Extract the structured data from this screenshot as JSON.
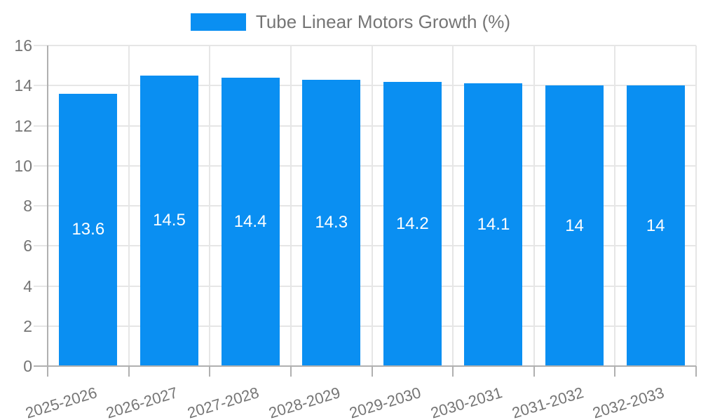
{
  "colors": {
    "bar": "#0a8ff2",
    "grid": "#e6e6e6",
    "axis": "#b0b0b0",
    "text": "#757575",
    "bar_label": "#ffffff",
    "background": "#ffffff"
  },
  "legend": {
    "label": "Tube Linear Motors Growth (%)"
  },
  "chart_data": {
    "type": "bar",
    "title": "Tube Linear Motors Growth (%)",
    "categories": [
      "2025-2026",
      "2026-2027",
      "2027-2028",
      "2028-2029",
      "2029-2030",
      "2030-2031",
      "2031-2032",
      "2032-2033"
    ],
    "values": [
      13.6,
      14.5,
      14.4,
      14.3,
      14.2,
      14.1,
      14,
      14
    ],
    "bar_labels": [
      "13.6",
      "14.5",
      "14.4",
      "14.3",
      "14.2",
      "14.1",
      "14",
      "14"
    ],
    "xlabel": "",
    "ylabel": "",
    "ylim": [
      0,
      16
    ],
    "yticks": [
      0,
      2,
      4,
      6,
      8,
      10,
      12,
      14,
      16
    ],
    "grid": true,
    "legend_position": "top"
  }
}
